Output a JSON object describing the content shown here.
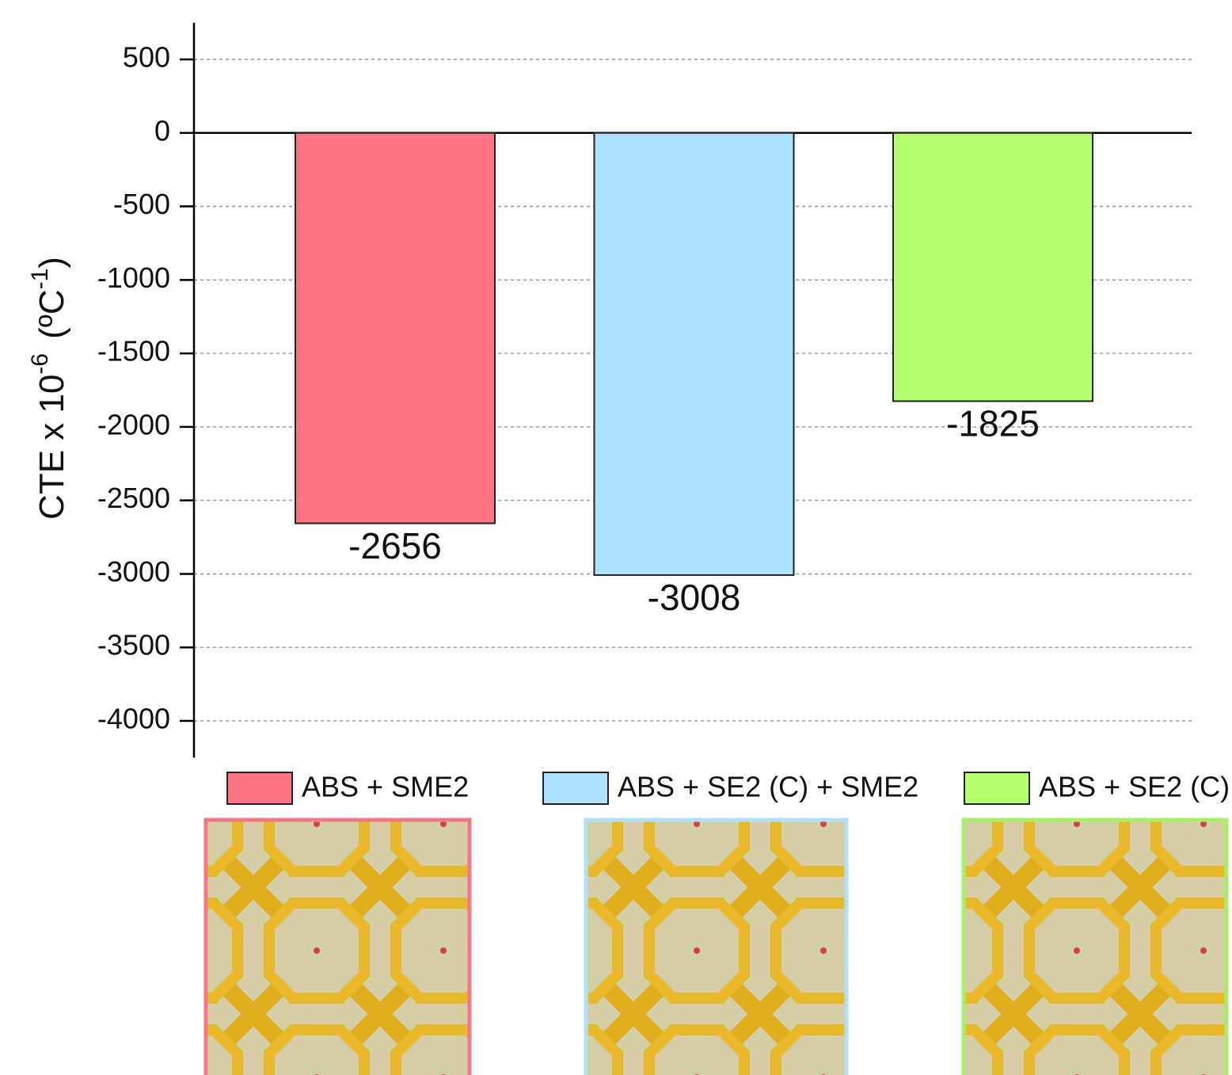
{
  "chart_data": {
    "type": "bar",
    "y_label": {
      "base": "CTE x 10",
      "exp": "-6",
      "unit": "(ºC",
      "unit_exp": "-1",
      "close": ")"
    },
    "categories": [
      "ABS + SME2",
      "ABS + SE2 (C) + SME2",
      "ABS + SE2 (C)"
    ],
    "values": [
      -2656,
      -3008,
      -1825
    ],
    "colors": [
      "#ff7382",
      "#ade3ff",
      "#b4ff6e"
    ],
    "ylim": [
      -4250,
      750
    ],
    "yticks": [
      500,
      0,
      -500,
      -1000,
      -1500,
      -2000,
      -2500,
      -3000,
      -3500,
      -4000
    ],
    "grid": true
  }
}
